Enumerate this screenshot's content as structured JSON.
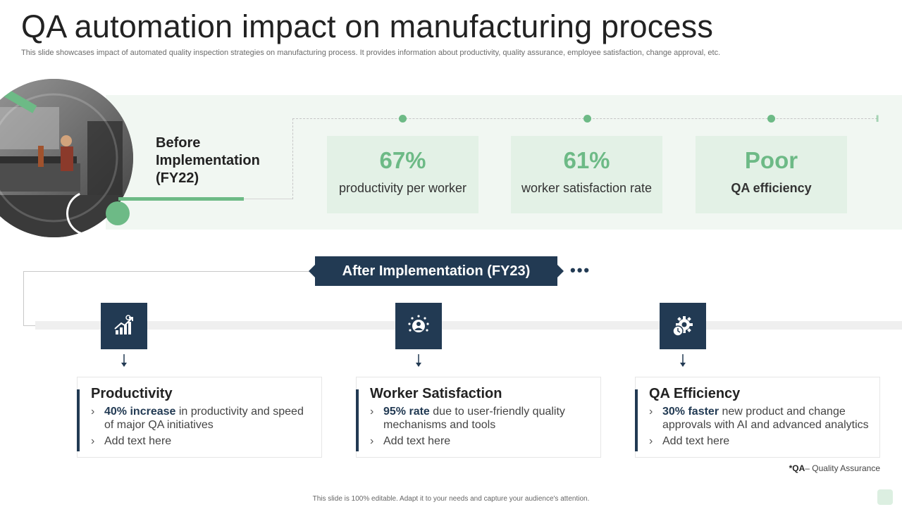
{
  "header": {
    "title": "QA automation impact on manufacturing process",
    "subtitle": "This slide showcases impact of automated quality inspection strategies on manufacturing process. It provides information about productivity, quality assurance, employee satisfaction, change approval, etc."
  },
  "before": {
    "label_line1": "Before",
    "label_line2": "Implementation",
    "label_line3": "(FY22)",
    "kpis": [
      {
        "value": "67%",
        "label": "productivity per worker"
      },
      {
        "value": "61%",
        "label": "worker satisfaction rate"
      },
      {
        "value": "Poor",
        "label": "QA efficiency"
      }
    ]
  },
  "after": {
    "banner": "After Implementation  (FY23)",
    "more": "•••",
    "cards": [
      {
        "icon": "growth-chart-icon",
        "title": "Productivity",
        "point1_bold": "40% increase",
        "point1_rest": " in productivity and speed of major QA initiatives",
        "point2": "Add text here"
      },
      {
        "icon": "satisfied-worker-icon",
        "title": "Worker Satisfaction",
        "point1_bold": "95% rate",
        "point1_rest": " due to user-friendly  quality mechanisms and tools",
        "point2": "Add text here"
      },
      {
        "icon": "gear-clock-icon",
        "title": "QA Efficiency",
        "point1_bold": "30% faster",
        "point1_rest": " new product and change approvals with AI and advanced analytics",
        "point2": "Add text here"
      }
    ]
  },
  "footnote": {
    "abbr": "*QA",
    "definition": "– Quality Assurance"
  },
  "footer": "This slide is 100% editable.  Adapt it to your needs and capture your audience's attention.",
  "colors": {
    "navy": "#223a53",
    "green": "#6dba86",
    "mint_band": "#f1f7f2",
    "mint_box": "#e3f1e6"
  }
}
